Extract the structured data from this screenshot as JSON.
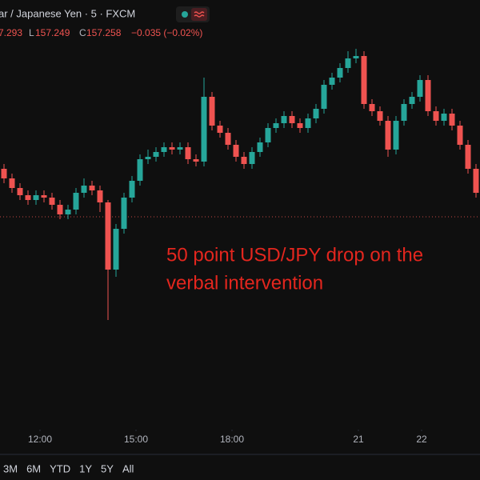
{
  "header": {
    "symbol": "ar / Japanese Yen · 5 · FXCM",
    "open_value": "7.293",
    "low": {
      "label": "L",
      "value": "157.249"
    },
    "close": {
      "label": "C",
      "value": "157.258"
    },
    "change": "−0.035 (−0.02%)"
  },
  "chart_data": {
    "type": "candlestick",
    "annotation": [
      "50 point USD/JPY drop on the",
      "verbal intervention"
    ],
    "open": [
      157.4,
      157.36,
      157.32,
      157.29,
      157.27,
      157.29,
      157.28,
      157.25,
      157.21,
      157.23,
      157.3,
      157.33,
      157.31,
      157.26,
      156.98,
      157.15,
      157.28,
      157.35,
      157.44,
      157.45,
      157.47,
      157.49,
      157.48,
      157.49,
      157.44,
      157.43,
      157.7,
      157.58,
      157.55,
      157.5,
      157.45,
      157.42,
      157.47,
      157.51,
      157.57,
      157.59,
      157.62,
      157.59,
      157.57,
      157.61,
      157.65,
      157.75,
      157.78,
      157.82,
      157.86,
      157.87,
      157.67,
      157.64,
      157.6,
      157.48,
      157.6,
      157.67,
      157.7,
      157.77,
      157.64,
      157.6,
      157.63,
      157.58,
      157.5,
      157.4
    ],
    "high": [
      157.42,
      157.38,
      157.34,
      157.31,
      157.31,
      157.31,
      157.3,
      157.27,
      157.25,
      157.32,
      157.36,
      157.35,
      157.33,
      157.27,
      157.17,
      157.3,
      157.37,
      157.46,
      157.48,
      157.49,
      157.51,
      157.51,
      157.51,
      157.51,
      157.46,
      157.78,
      157.72,
      157.6,
      157.57,
      157.52,
      157.47,
      157.49,
      157.53,
      157.59,
      157.61,
      157.64,
      157.64,
      157.61,
      157.63,
      157.67,
      157.77,
      157.8,
      157.84,
      157.89,
      157.9,
      157.89,
      157.69,
      157.66,
      157.62,
      157.62,
      157.69,
      157.72,
      157.79,
      157.79,
      157.66,
      157.65,
      157.65,
      157.6,
      157.52,
      157.42
    ],
    "low": [
      157.34,
      157.3,
      157.27,
      157.25,
      157.25,
      157.26,
      157.23,
      157.19,
      157.19,
      157.21,
      157.28,
      157.29,
      157.22,
      156.77,
      156.95,
      157.13,
      157.26,
      157.33,
      157.42,
      157.43,
      157.45,
      157.46,
      157.46,
      157.42,
      157.41,
      157.41,
      157.56,
      157.53,
      157.48,
      157.43,
      157.4,
      157.4,
      157.45,
      157.49,
      157.55,
      157.57,
      157.57,
      157.55,
      157.55,
      157.59,
      157.63,
      157.73,
      157.76,
      157.8,
      157.84,
      157.65,
      157.62,
      157.58,
      157.45,
      157.46,
      157.58,
      157.65,
      157.68,
      157.62,
      157.58,
      157.58,
      157.56,
      157.48,
      157.38,
      157.28
    ],
    "close": [
      157.36,
      157.32,
      157.29,
      157.27,
      157.29,
      157.28,
      157.25,
      157.21,
      157.23,
      157.3,
      157.33,
      157.31,
      157.26,
      156.98,
      157.15,
      157.28,
      157.35,
      157.44,
      157.45,
      157.47,
      157.49,
      157.48,
      157.49,
      157.44,
      157.43,
      157.7,
      157.58,
      157.55,
      157.5,
      157.45,
      157.42,
      157.47,
      157.51,
      157.57,
      157.59,
      157.62,
      157.59,
      157.57,
      157.61,
      157.65,
      157.75,
      157.78,
      157.82,
      157.86,
      157.87,
      157.67,
      157.64,
      157.6,
      157.48,
      157.6,
      157.67,
      157.7,
      157.77,
      157.64,
      157.6,
      157.63,
      157.58,
      157.5,
      157.4,
      157.3
    ],
    "up_color": "#26a69a",
    "down_color": "#ef5350",
    "reference_line": 157.2,
    "xlim": [
      -0.5,
      59.5
    ],
    "ylim": [
      156.32,
      157.92
    ],
    "xticks": [
      {
        "value": 4.5,
        "label": "12:00"
      },
      {
        "value": 16.5,
        "label": "15:00"
      },
      {
        "value": 28.5,
        "label": "18:00"
      },
      {
        "value": 44.3,
        "label": "21"
      },
      {
        "value": 52.2,
        "label": "22"
      }
    ]
  },
  "range_buttons": [
    "3M",
    "6M",
    "YTD",
    "1Y",
    "5Y",
    "All"
  ]
}
